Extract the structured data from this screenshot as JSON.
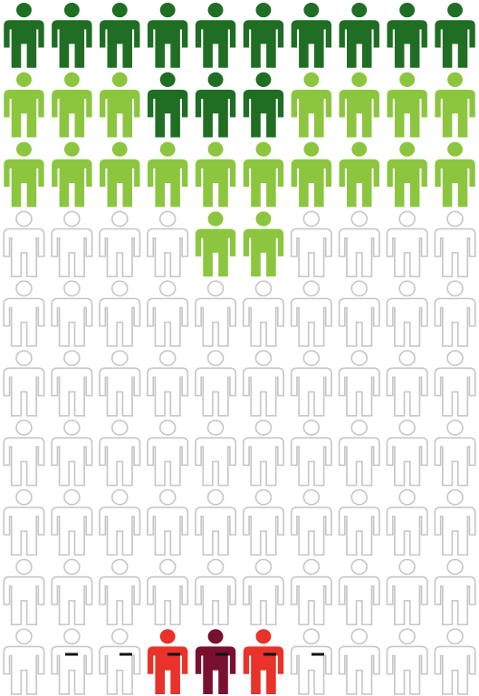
{
  "chart_data": {
    "type": "pictogram",
    "cells": [
      [
        "#1f6e23",
        "#1f6e23",
        "#1f6e23",
        "#1f6e23",
        "#1f6e23",
        "#1f6e23",
        "#1f6e23",
        "#1f6e23",
        "#1f6e23",
        "#1f6e23"
      ],
      [
        "#8cc63f",
        "#8cc63f",
        "#8cc63f",
        "#1f6e23",
        "#1f6e23",
        "#1f6e23",
        "#8cc63f",
        "#8cc63f",
        "#8cc63f",
        "#8cc63f"
      ],
      [
        "#8cc63f",
        "#8cc63f",
        "#8cc63f",
        "#8cc63f",
        "#8cc63f",
        "#8cc63f",
        "#8cc63f",
        "#8cc63f",
        "#8cc63f",
        "#8cc63f"
      ],
      [
        "#ffffff",
        "#ffffff",
        "#ffffff",
        "#ffffff",
        "#8cc63f",
        "#8cc63f",
        "#ffffff",
        "#ffffff",
        "#ffffff",
        "#ffffff"
      ],
      [
        "#ffffff",
        "#ffffff",
        "#ffffff",
        "#ffffff",
        "#ffffff",
        "#ffffff",
        "#ffffff",
        "#ffffff",
        "#ffffff",
        "#ffffff"
      ],
      [
        "#ffffff",
        "#ffffff",
        "#ffffff",
        "#ffffff",
        "#ffffff",
        "#ffffff",
        "#ffffff",
        "#ffffff",
        "#ffffff",
        "#ffffff"
      ],
      [
        "#ffffff",
        "#ffffff",
        "#ffffff",
        "#ffffff",
        "#ffffff",
        "#ffffff",
        "#ffffff",
        "#ffffff",
        "#ffffff",
        "#ffffff"
      ],
      [
        "#ffffff",
        "#ffffff",
        "#ffffff",
        "#ffffff",
        "#ffffff",
        "#ffffff",
        "#ffffff",
        "#ffffff",
        "#ffffff",
        "#ffffff"
      ],
      [
        "#ffffff",
        "#ffffff",
        "#ffffff",
        "#ffffff",
        "#ffffff",
        "#ffffff",
        "#ffffff",
        "#ffffff",
        "#ffffff",
        "#ffffff"
      ],
      [
        "#ffffff",
        "#ffffff",
        "#ffffff",
        "#e8322a",
        "#7a1030",
        "#e8322a",
        "#ffffff",
        "#ffffff",
        "#ffffff",
        "#ffffff"
      ]
    ]
  }
}
